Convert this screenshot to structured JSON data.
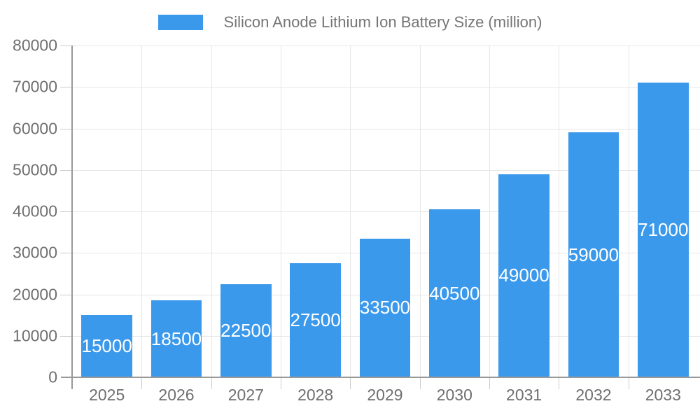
{
  "legend": {
    "label": "Silicon Anode Lithium Ion Battery Size (million)"
  },
  "chart_data": {
    "type": "bar",
    "title": "Silicon Anode Lithium Ion Battery Size (million)",
    "categories": [
      "2025",
      "2026",
      "2027",
      "2028",
      "2029",
      "2030",
      "2031",
      "2032",
      "2033"
    ],
    "values": [
      15000,
      18500,
      22500,
      27500,
      33500,
      40500,
      49000,
      59000,
      71000
    ],
    "xlabel": "",
    "ylabel": "",
    "ylim": [
      0,
      80000
    ],
    "ytick_step": 10000,
    "ytick_labels": [
      "0",
      "10000",
      "20000",
      "30000",
      "40000",
      "50000",
      "60000",
      "70000",
      "80000"
    ],
    "grid": true,
    "legend_position": "top",
    "value_labels": "inside-center"
  },
  "colors": {
    "bar": "#3B99EC",
    "legend_text": "#757575",
    "axis_text": "#6f6f6f",
    "axis_line": "#999999",
    "gridline": "#e6e6e6",
    "tick": "#cccccc",
    "value_label": "#ffffff",
    "background": "#ffffff"
  }
}
